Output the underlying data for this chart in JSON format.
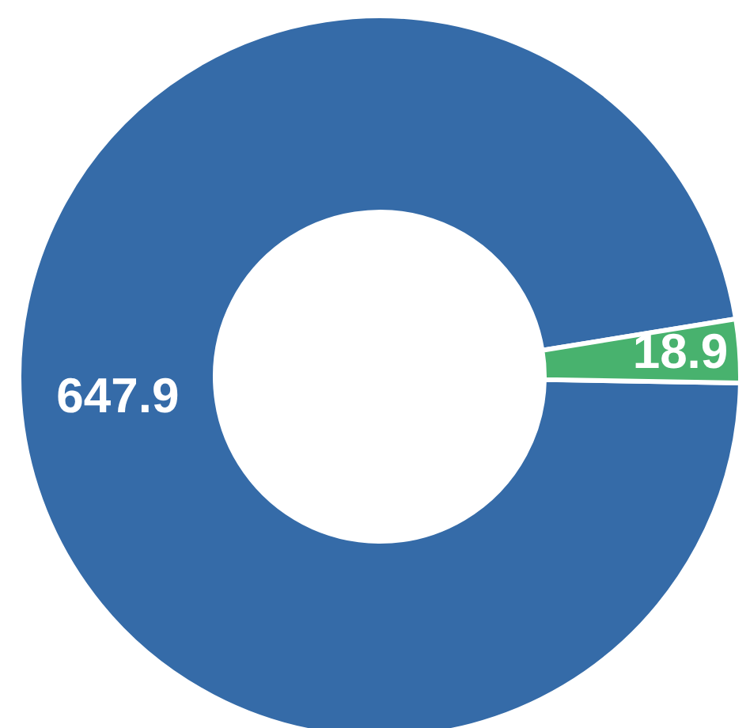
{
  "chart_data": {
    "type": "donut",
    "categories": [
      null,
      null
    ],
    "values": [
      647.9,
      18.9
    ],
    "colors": [
      "#356ba8",
      "#48b26e"
    ],
    "data_labels": true
  }
}
